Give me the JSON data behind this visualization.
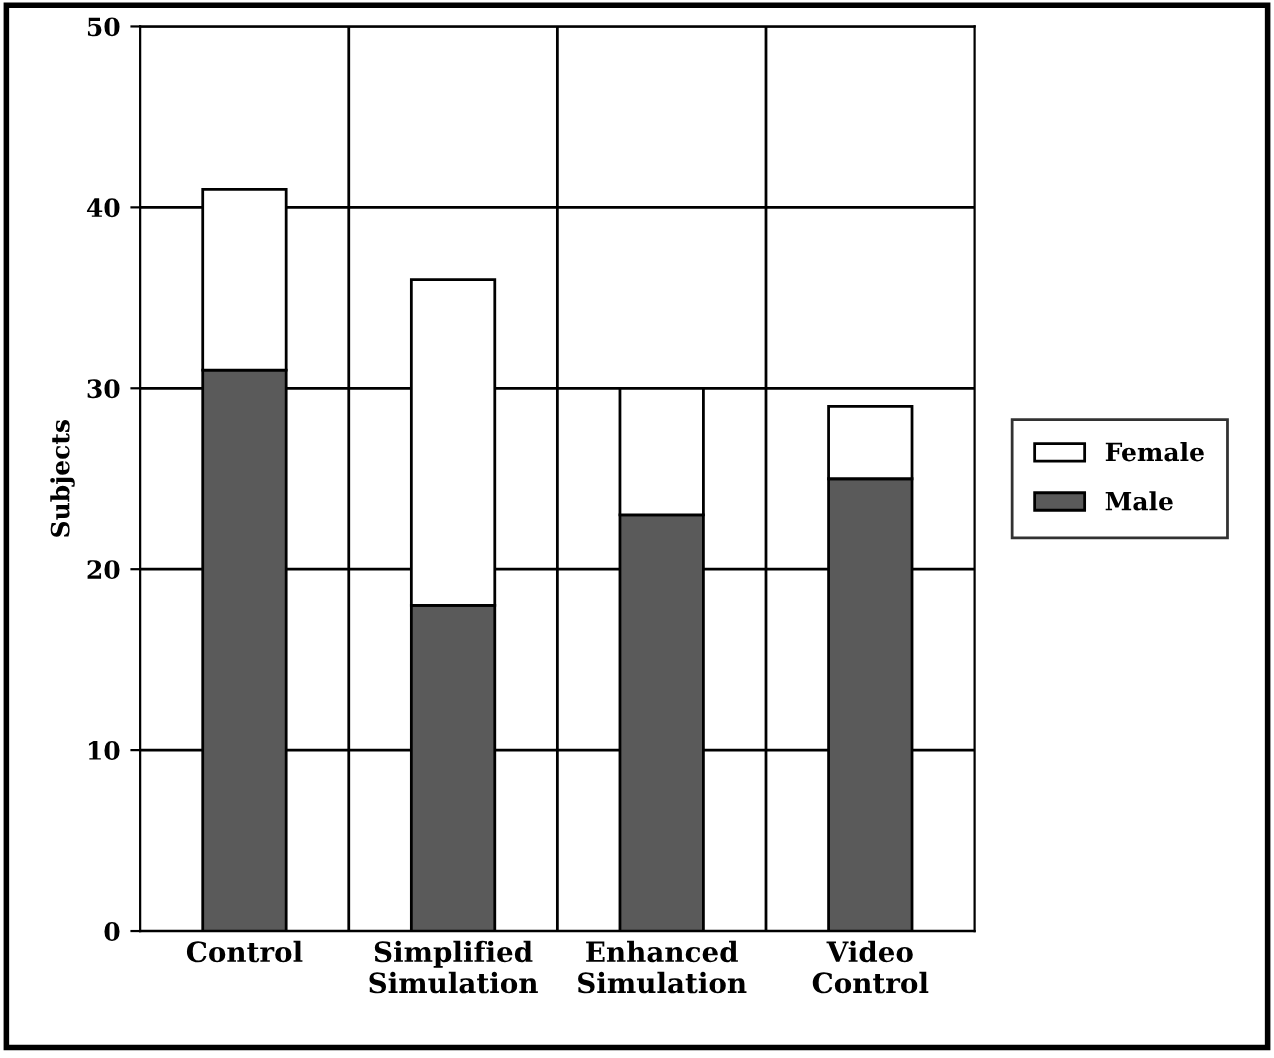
{
  "chart_data": {
    "type": "bar",
    "stacked": true,
    "ylabel": "Subjects",
    "categories": [
      "Control",
      "Simplified\nSimulation",
      "Enhanced\nSimulation",
      "Video\nControl"
    ],
    "series": [
      {
        "name": "Male",
        "color": "#5a5a5a",
        "values": [
          31,
          18,
          23,
          25
        ]
      },
      {
        "name": "Female",
        "color": "#ffffff",
        "values": [
          10,
          18,
          7,
          4
        ]
      }
    ],
    "ylim": [
      0,
      50
    ],
    "yticks": [
      0,
      10,
      20,
      30,
      40,
      50
    ],
    "grid": true,
    "legend": "right"
  }
}
